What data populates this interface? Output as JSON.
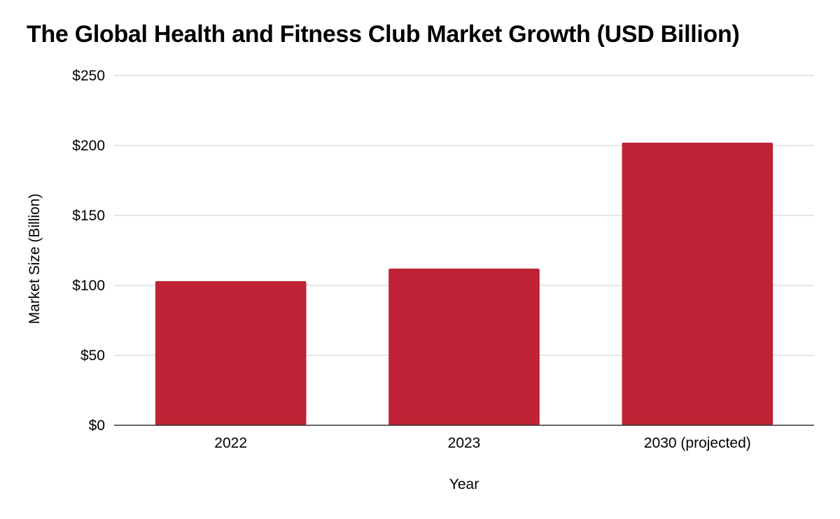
{
  "chart_data": {
    "type": "bar",
    "title": "The Global Health and Fitness Club Market Growth (USD Billion)",
    "xlabel": "Year",
    "ylabel": "Market Size (Billion)",
    "categories": [
      "2022",
      "2023",
      "2030 (projected)"
    ],
    "values": [
      103,
      112,
      202
    ],
    "ylim": [
      0,
      250
    ],
    "yticks": [
      0,
      50,
      100,
      150,
      200,
      250
    ],
    "ytick_labels": [
      "$0",
      "$50",
      "$100",
      "$150",
      "$200",
      "$250"
    ],
    "bar_color": "#c0392b",
    "bar_color_exact": "#bf2335",
    "grid_color": "#cccccc",
    "axis_color": "#333333",
    "grid": true,
    "legend": "none"
  }
}
